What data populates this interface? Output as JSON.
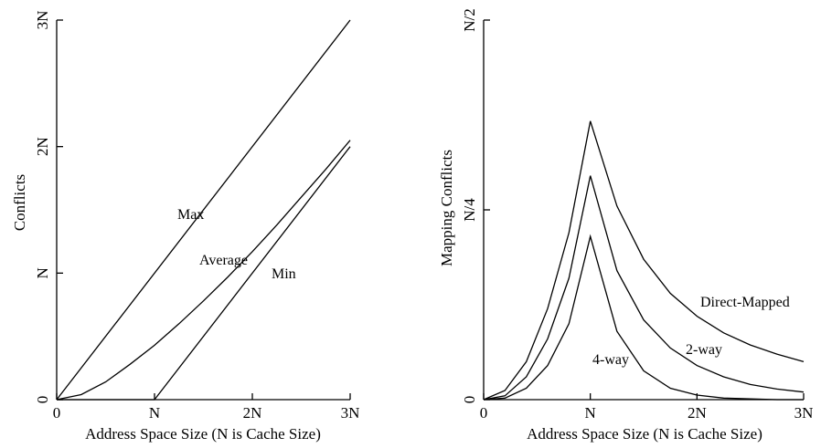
{
  "chart_data": [
    {
      "type": "line",
      "xlabel": "Address Space Size (N is Cache Size)",
      "ylabel": "Conflicts",
      "x_ticks": [
        "0",
        "N",
        "2N",
        "3N"
      ],
      "y_ticks": [
        "0",
        "N",
        "2N",
        "3N"
      ],
      "xlim": [
        0,
        3
      ],
      "ylim": [
        0,
        3
      ],
      "series": [
        {
          "name": "Max",
          "x": [
            0,
            3
          ],
          "y": [
            0,
            3
          ]
        },
        {
          "name": "Average",
          "x": [
            0,
            0.25,
            0.5,
            0.75,
            1.0,
            1.25,
            1.5,
            1.75,
            2.0,
            2.25,
            2.5,
            2.75,
            3.0
          ],
          "y": [
            0,
            0.04,
            0.14,
            0.28,
            0.43,
            0.6,
            0.78,
            0.97,
            1.17,
            1.38,
            1.6,
            1.82,
            2.05
          ]
        },
        {
          "name": "Min",
          "x": [
            0,
            1,
            3
          ],
          "y": [
            0,
            0,
            2
          ]
        }
      ],
      "annotations": [
        {
          "text": "Max",
          "series": "Max"
        },
        {
          "text": "Average",
          "series": "Average"
        },
        {
          "text": "Min",
          "series": "Min"
        }
      ]
    },
    {
      "type": "line",
      "xlabel": "Address Space Size (N is Cache Size)",
      "ylabel": "Mapping Conflicts",
      "x_ticks": [
        "0",
        "N",
        "2N",
        "3N"
      ],
      "y_ticks": [
        "0",
        "N/4",
        "N/2"
      ],
      "xlim": [
        0,
        3
      ],
      "ylim": [
        0,
        0.5
      ],
      "series": [
        {
          "name": "Direct-Mapped",
          "x": [
            0,
            0.2,
            0.4,
            0.6,
            0.8,
            1.0,
            1.25,
            1.5,
            1.75,
            2.0,
            2.25,
            2.5,
            2.75,
            3.0
          ],
          "y": [
            0,
            0.012,
            0.05,
            0.12,
            0.22,
            0.367,
            0.255,
            0.185,
            0.14,
            0.11,
            0.088,
            0.072,
            0.06,
            0.05
          ]
        },
        {
          "name": "2-way",
          "x": [
            0,
            0.2,
            0.4,
            0.6,
            0.8,
            1.0,
            1.25,
            1.5,
            1.75,
            2.0,
            2.25,
            2.5,
            2.75,
            3.0
          ],
          "y": [
            0,
            0.005,
            0.03,
            0.08,
            0.16,
            0.295,
            0.17,
            0.105,
            0.068,
            0.045,
            0.03,
            0.02,
            0.014,
            0.01
          ]
        },
        {
          "name": "4-way",
          "x": [
            0,
            0.2,
            0.4,
            0.6,
            0.8,
            1.0,
            1.25,
            1.5,
            1.75,
            2.0,
            2.25,
            2.5,
            2.75,
            3.0
          ],
          "y": [
            0,
            0.002,
            0.015,
            0.045,
            0.1,
            0.215,
            0.09,
            0.038,
            0.015,
            0.006,
            0.002,
            0.001,
            0,
            0
          ]
        }
      ],
      "annotations": [
        {
          "text": "Direct-Mapped",
          "series": "Direct-Mapped"
        },
        {
          "text": "2-way",
          "series": "2-way"
        },
        {
          "text": "4-way",
          "series": "4-way"
        }
      ]
    }
  ]
}
